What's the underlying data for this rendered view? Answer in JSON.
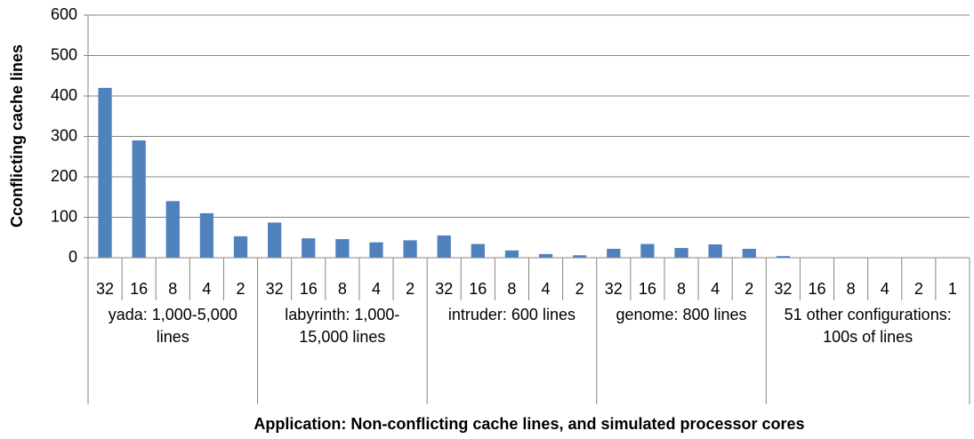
{
  "chart_data": {
    "type": "bar",
    "y_label": "Cconflicting cache lines",
    "x_label": "Application: Non-conflicting cache lines, and simulated processor cores",
    "groups": [
      {
        "label": "yada: 1,000-5,000 lines",
        "categories": [
          "32",
          "16",
          "8",
          "4",
          "2"
        ]
      },
      {
        "label": "labyrinth: 1,000-15,000 lines",
        "categories": [
          "32",
          "16",
          "8",
          "4",
          "2"
        ]
      },
      {
        "label": "intruder: 600 lines",
        "categories": [
          "32",
          "16",
          "8",
          "4",
          "2"
        ]
      },
      {
        "label": "genome: 800 lines",
        "categories": [
          "32",
          "16",
          "8",
          "4",
          "2"
        ]
      },
      {
        "label": "51 other configurations: 100s of lines",
        "categories": [
          "32",
          "16",
          "8",
          "4",
          "2",
          "1"
        ]
      }
    ],
    "values": [
      420,
      290,
      140,
      110,
      53,
      87,
      48,
      46,
      38,
      43,
      55,
      34,
      18,
      9,
      6,
      22,
      34,
      24,
      33,
      22,
      4,
      0,
      0,
      0,
      0,
      0
    ],
    "color": "#4f81bd",
    "ylim": [
      0,
      600
    ],
    "yticks": [
      0,
      100,
      200,
      300,
      400,
      500,
      600
    ],
    "grid": true
  }
}
